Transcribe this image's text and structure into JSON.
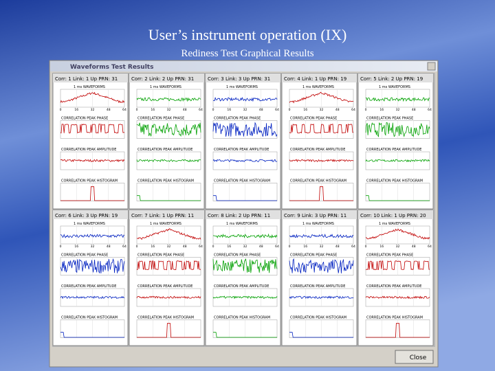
{
  "slide": {
    "title": "User’s instrument operation (IX)",
    "subtitle": "Rediness Test Graphical Results"
  },
  "window": {
    "title": "Waveforms Test Results",
    "close_button": "Close",
    "plot_labels": [
      "1 ms WAVEFORMS",
      "CORRELATION PEAK PHASE",
      "CORRELATION PEAK AMPLITUDE",
      "CORRELATION PEAK HISTOGRAM"
    ],
    "x_ticks": [
      "0",
      "16",
      "32",
      "48",
      "64"
    ],
    "panels": [
      {
        "header": "Corr: 1  Link: 1  Up  PRN: 31",
        "color": "#c00000"
      },
      {
        "header": "Corr: 2  Link: 2  Up  PRN: 31",
        "color": "#00a000"
      },
      {
        "header": "Corr: 3  Link: 3  Up  PRN: 31",
        "color": "#0020c0"
      },
      {
        "header": "Corr: 4  Link: 1  Up  PRN: 19",
        "color": "#c00000"
      },
      {
        "header": "Corr: 5  Link: 2  Up  PRN: 19",
        "color": "#00a000"
      },
      {
        "header": "Corr: 6  Link: 3  Up  PRN: 19",
        "color": "#0020c0"
      },
      {
        "header": "Corr: 7  Link: 1  Up  PRN: 11",
        "color": "#c00000"
      },
      {
        "header": "Corr: 8  Link: 2  Up  PRN: 11",
        "color": "#00a000"
      },
      {
        "header": "Corr: 9  Link: 3  Up  PRN: 11",
        "color": "#0020c0"
      },
      {
        "header": "Corr: 10  Link: 1  Up  PRN: 20",
        "color": "#c00000"
      }
    ]
  }
}
